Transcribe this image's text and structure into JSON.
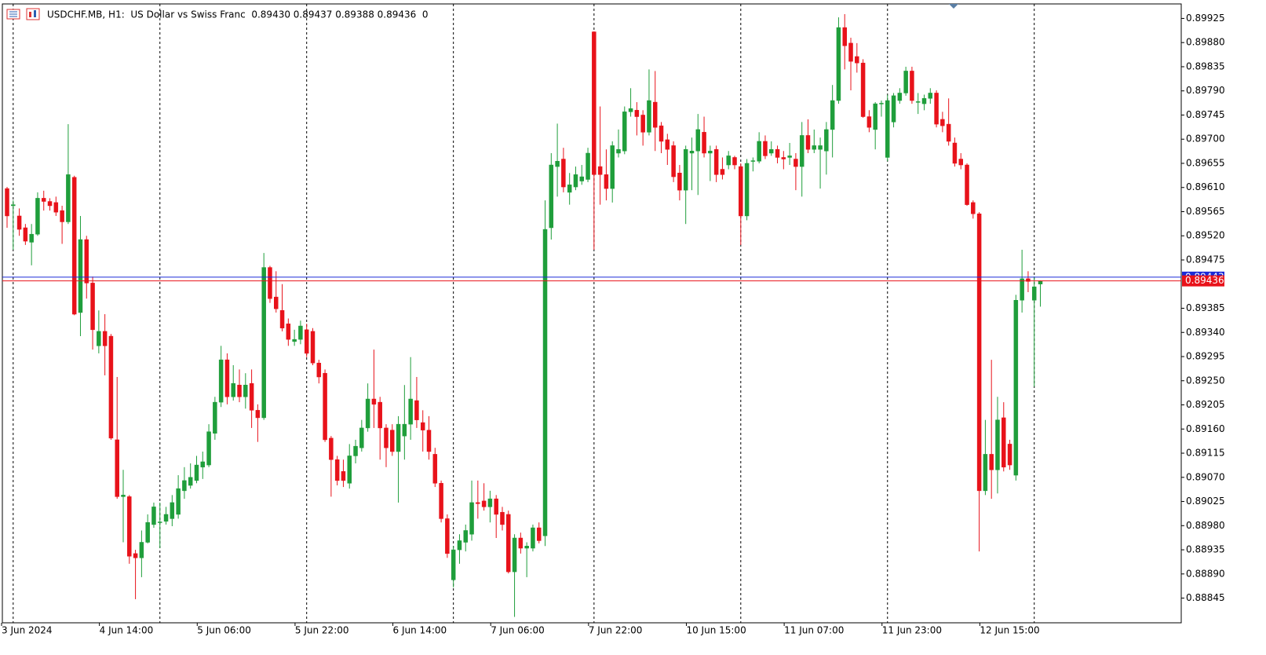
{
  "chart_data": {
    "type": "candlestick",
    "title": "USDCHF.MB, H1:  US Dollar vs Swiss Franc  0.89430 0.89437 0.89388 0.89436  0",
    "categories": [
      "3 Jun 2024",
      null,
      null,
      null,
      null,
      null,
      null,
      null,
      null,
      null,
      null,
      null,
      null,
      null,
      null,
      null,
      "4 Jun 14:00",
      null,
      null,
      null,
      null,
      null,
      null,
      null,
      null,
      null,
      null,
      null,
      null,
      null,
      null,
      null,
      "5 Jun 06:00",
      null,
      null,
      null,
      null,
      null,
      null,
      null,
      null,
      null,
      null,
      null,
      null,
      null,
      null,
      null,
      "5 Jun 22:00",
      null,
      null,
      null,
      null,
      null,
      null,
      null,
      null,
      null,
      null,
      null,
      null,
      null,
      null,
      null,
      "6 Jun 14:00",
      null,
      null,
      null,
      null,
      null,
      null,
      null,
      null,
      null,
      null,
      null,
      null,
      null,
      null,
      null,
      "7 Jun 06:00",
      null,
      null,
      null,
      null,
      null,
      null,
      null,
      null,
      null,
      null,
      null,
      null,
      null,
      null,
      null,
      "7 Jun 22:00",
      null,
      null,
      null,
      null,
      null,
      null,
      null,
      null,
      null,
      null,
      null,
      null,
      null,
      null,
      null,
      "10 Jun 15:00",
      null,
      null,
      null,
      null,
      null,
      null,
      null,
      null,
      null,
      null,
      null,
      null,
      null,
      null,
      null,
      "11 Jun 07:00",
      null,
      null,
      null,
      null,
      null,
      null,
      null,
      null,
      null,
      null,
      null,
      null,
      null,
      null,
      null,
      "11 Jun 23:00",
      null,
      null,
      null,
      null,
      null,
      null,
      null,
      null,
      null,
      null,
      null,
      null,
      null,
      null,
      null,
      "12 Jun 15:00",
      null,
      null,
      null,
      null,
      null,
      null,
      null,
      null,
      null
    ],
    "open": [
      0.89608,
      0.89576,
      0.89557,
      0.89535,
      0.89508,
      0.89523,
      0.8959,
      0.89584,
      0.89582,
      0.89567,
      0.89546,
      0.89629,
      0.89377,
      0.89513,
      0.89432,
      0.89315,
      0.89342,
      0.89333,
      0.8914,
      0.89034,
      0.89034,
      0.88928,
      0.8892,
      0.88949,
      0.88982,
      0.88986,
      0.88988,
      0.88993,
      0.89001,
      0.89045,
      0.89055,
      0.89064,
      0.89089,
      0.89093,
      0.89152,
      0.8921,
      0.89289,
      0.8922,
      0.89242,
      0.8922,
      0.89245,
      0.89195,
      0.89181,
      0.89461,
      0.89406,
      0.89381,
      0.89356,
      0.89323,
      0.89327,
      0.89345,
      0.89342,
      0.89283,
      0.89264,
      0.89143,
      0.89103,
      0.89081,
      0.89059,
      0.8911,
      0.89125,
      0.89162,
      0.89216,
      0.8921,
      0.89162,
      0.89158,
      0.89118,
      0.89147,
      0.89169,
      0.89213,
      0.89172,
      0.89158,
      0.89113,
      0.89059,
      0.88993,
      0.88879,
      0.88935,
      0.88949,
      0.88964,
      0.89023,
      0.89026,
      0.89015,
      0.8903,
      0.89005,
      0.89001,
      0.88894,
      0.88957,
      0.88938,
      0.88938,
      0.88976,
      0.88961,
      0.89535,
      0.89649,
      0.89663,
      0.89601,
      0.89611,
      0.89622,
      0.89625,
      0.899,
      0.89649,
      0.89634,
      0.89608,
      0.89674,
      0.89678,
      0.89751,
      0.89754,
      0.89745,
      0.89713,
      0.89769,
      0.89725,
      0.89699,
      0.89688,
      0.89637,
      0.89605,
      0.89674,
      0.89678,
      0.89713,
      0.89674,
      0.89681,
      0.89644,
      0.89652,
      0.89666,
      0.89649,
      0.89557,
      0.89659,
      0.89659,
      0.89696,
      0.89674,
      0.89681,
      0.89666,
      0.89666,
      0.89663,
      0.89649,
      0.89707,
      0.89681,
      0.89681,
      0.89678,
      0.89718,
      0.89772,
      0.89908,
      0.89879,
      0.89854,
      0.89842,
      0.89742,
      0.89718,
      0.89766,
      0.89666,
      0.89732,
      0.89772,
      0.89786,
      0.89827,
      0.89769,
      0.89766,
      0.89776,
      0.89786,
      0.89737,
      0.89728,
      0.89693,
      0.89663,
      0.89652,
      0.89582,
      0.89561,
      0.89045,
      0.89113,
      0.89084,
      0.89181,
      0.89132,
      0.89074,
      0.894,
      0.8944,
      0.894,
      0.8943
    ],
    "high": [
      0.89611,
      0.89586,
      0.89571,
      0.89542,
      0.89542,
      0.89601,
      0.89604,
      0.8959,
      0.89593,
      0.89576,
      0.89728,
      0.89632,
      0.89557,
      0.8952,
      0.89444,
      0.89381,
      0.89374,
      0.89337,
      0.89257,
      0.89084,
      0.89037,
      0.88935,
      0.88971,
      0.89001,
      0.89023,
      0.89023,
      0.89015,
      0.89037,
      0.89074,
      0.89089,
      0.89096,
      0.8911,
      0.89118,
      0.89169,
      0.8922,
      0.89315,
      0.89301,
      0.89279,
      0.89271,
      0.89264,
      0.89271,
      0.89206,
      0.89488,
      0.89464,
      0.89454,
      0.8943,
      0.89366,
      0.89345,
      0.89362,
      0.89356,
      0.89348,
      0.89289,
      0.89271,
      0.89147,
      0.8911,
      0.89103,
      0.89132,
      0.8914,
      0.89177,
      0.89245,
      0.89308,
      0.8922,
      0.89169,
      0.89169,
      0.89184,
      0.89242,
      0.89294,
      0.89257,
      0.89195,
      0.89184,
      0.89125,
      0.89064,
      0.89001,
      0.88942,
      0.88964,
      0.88982,
      0.89064,
      0.89064,
      0.89059,
      0.89045,
      0.89037,
      0.89015,
      0.89008,
      0.88964,
      0.88967,
      0.88949,
      0.88982,
      0.88986,
      0.89586,
      0.89674,
      0.89729,
      0.89684,
      0.89637,
      0.89649,
      0.89652,
      0.89684,
      0.89901,
      0.89761,
      0.89681,
      0.89696,
      0.89718,
      0.89761,
      0.89795,
      0.89769,
      0.89754,
      0.8983,
      0.89827,
      0.89732,
      0.8971,
      0.89696,
      0.89652,
      0.89688,
      0.89703,
      0.89747,
      0.89742,
      0.89688,
      0.89688,
      0.89666,
      0.89678,
      0.89669,
      0.89655,
      0.89663,
      0.89666,
      0.89713,
      0.89707,
      0.89696,
      0.89688,
      0.89678,
      0.89693,
      0.89674,
      0.89732,
      0.89737,
      0.89718,
      0.89703,
      0.89732,
      0.89801,
      0.89927,
      0.89933,
      0.89889,
      0.89879,
      0.89849,
      0.89754,
      0.89769,
      0.89772,
      0.89783,
      0.89786,
      0.89795,
      0.89835,
      0.89835,
      0.89786,
      0.89783,
      0.89795,
      0.89791,
      0.89751,
      0.89776,
      0.89703,
      0.89674,
      0.89655,
      0.89586,
      0.89564,
      0.89177,
      0.89289,
      0.8922,
      0.8921,
      0.8914,
      0.8941,
      0.89494,
      0.89454,
      0.89444,
      0.89437
    ],
    "low": [
      0.89535,
      0.89494,
      0.8952,
      0.89503,
      0.89465,
      0.8952,
      0.89567,
      0.89567,
      0.89557,
      0.89505,
      0.89542,
      0.89372,
      0.89333,
      0.89403,
      0.89308,
      0.89301,
      0.8926,
      0.8914,
      0.8903,
      0.88949,
      0.88909,
      0.88843,
      0.88884,
      0.88947,
      0.88976,
      0.88938,
      0.88982,
      0.88979,
      0.88993,
      0.8903,
      0.89049,
      0.89059,
      0.89067,
      0.89089,
      0.8914,
      0.89201,
      0.89206,
      0.89213,
      0.8921,
      0.89198,
      0.89162,
      0.89136,
      0.89177,
      0.89395,
      0.89377,
      0.89342,
      0.89315,
      0.89315,
      0.89318,
      0.89294,
      0.89279,
      0.89245,
      0.89136,
      0.89034,
      0.89055,
      0.89052,
      0.89049,
      0.89096,
      0.89118,
      0.89155,
      0.89162,
      0.89103,
      0.89089,
      0.8911,
      0.89023,
      0.89103,
      0.8914,
      0.89162,
      0.89118,
      0.89103,
      0.89052,
      0.88986,
      0.8892,
      0.88865,
      0.88909,
      0.88932,
      0.88952,
      0.88993,
      0.89008,
      0.88986,
      0.88957,
      0.88971,
      0.88891,
      0.8881,
      0.88928,
      0.88884,
      0.88932,
      0.88947,
      0.88942,
      0.89513,
      0.89593,
      0.89601,
      0.89578,
      0.89605,
      0.89615,
      0.8962,
      0.89494,
      0.89578,
      0.89586,
      0.89582,
      0.89666,
      0.89672,
      0.89742,
      0.89707,
      0.89688,
      0.89707,
      0.89678,
      0.89674,
      0.89652,
      0.8962,
      0.89586,
      0.89542,
      0.89605,
      0.89596,
      0.89666,
      0.89622,
      0.8962,
      0.89625,
      0.89644,
      0.89644,
      0.89503,
      0.89549,
      0.8964,
      0.89655,
      0.89663,
      0.89669,
      0.89655,
      0.89644,
      0.89652,
      0.89605,
      0.89593,
      0.89674,
      0.89674,
      0.89608,
      0.89634,
      0.89666,
      0.89766,
      0.8983,
      0.89791,
      0.89824,
      0.8974,
      0.89713,
      0.89681,
      0.89742,
      0.89659,
      0.89722,
      0.89766,
      0.89781,
      0.89766,
      0.89747,
      0.89754,
      0.89766,
      0.89722,
      0.89713,
      0.89688,
      0.89649,
      0.89644,
      0.89576,
      0.89552,
      0.88932,
      0.89037,
      0.8903,
      0.8904,
      0.89081,
      0.89084,
      0.89064,
      0.89377,
      0.89415,
      0.89239,
      0.89388
    ],
    "close": [
      0.89557,
      0.89578,
      0.89532,
      0.8951,
      0.89523,
      0.8959,
      0.89584,
      0.89576,
      0.89564,
      0.89546,
      0.89634,
      0.89374,
      0.89513,
      0.89432,
      0.89345,
      0.89342,
      0.89315,
      0.89143,
      0.89034,
      0.89037,
      0.88923,
      0.8892,
      0.88949,
      0.88986,
      0.89015,
      0.88987,
      0.89001,
      0.89023,
      0.89049,
      0.89064,
      0.8907,
      0.89093,
      0.89099,
      0.89155,
      0.8921,
      0.89289,
      0.8922,
      0.89245,
      0.8922,
      0.89242,
      0.89195,
      0.89181,
      0.89461,
      0.89403,
      0.89384,
      0.89348,
      0.89327,
      0.89327,
      0.89352,
      0.89301,
      0.89283,
      0.89257,
      0.8914,
      0.89103,
      0.89064,
      0.89064,
      0.8911,
      0.89128,
      0.89162,
      0.89216,
      0.89206,
      0.89162,
      0.89125,
      0.89118,
      0.89169,
      0.89169,
      0.89216,
      0.89177,
      0.89158,
      0.89118,
      0.89059,
      0.88993,
      0.88928,
      0.88935,
      0.88952,
      0.88971,
      0.89023,
      0.89021,
      0.89015,
      0.8903,
      0.89001,
      0.88982,
      0.88894,
      0.88957,
      0.88938,
      0.88942,
      0.88976,
      0.88952,
      0.89532,
      0.89652,
      0.89659,
      0.89611,
      0.89615,
      0.89634,
      0.8963,
      0.89674,
      0.89634,
      0.89634,
      0.89608,
      0.89688,
      0.89681,
      0.89751,
      0.89757,
      0.89742,
      0.89713,
      0.89772,
      0.89722,
      0.89696,
      0.89681,
      0.8963,
      0.89605,
      0.89681,
      0.89678,
      0.89718,
      0.89674,
      0.89678,
      0.89634,
      0.89634,
      0.89669,
      0.89652,
      0.89557,
      0.89655,
      0.8966,
      0.89696,
      0.89669,
      0.89681,
      0.89666,
      0.89663,
      0.89669,
      0.89649,
      0.89707,
      0.89681,
      0.89688,
      0.89688,
      0.89718,
      0.89772,
      0.89908,
      0.89874,
      0.89845,
      0.89842,
      0.89742,
      0.89722,
      0.89766,
      0.89767,
      0.89772,
      0.89781,
      0.89786,
      0.89827,
      0.89772,
      0.8977,
      0.89776,
      0.89786,
      0.89728,
      0.89725,
      0.89696,
      0.89655,
      0.89652,
      0.89578,
      0.89561,
      0.89045,
      0.89113,
      0.89084,
      0.89177,
      0.89089,
      0.89093,
      0.894,
      0.8944,
      0.89435,
      0.89425,
      0.89436
    ],
    "up_color": "#1f9e3b",
    "down_color": "#e8121a",
    "bid": 0.89436,
    "bid_color": "#e8121a",
    "ask": 0.89443,
    "ask_color": "#1b2bd8",
    "ylim": [
      0.88799,
      0.89952
    ],
    "yticks": [
      0.89925,
      {
        "value": 0.8988,
        "label": "0.89880"
      },
      0.89835,
      {
        "value": 0.8979,
        "label": "0.89790"
      },
      0.89745,
      {
        "value": 0.897,
        "label": "0.89700"
      },
      0.89655,
      {
        "value": 0.8961,
        "label": "0.89610"
      },
      0.89565,
      {
        "value": 0.8952,
        "label": "0.89520"
      },
      0.89475,
      0.89385,
      {
        "value": 0.8934,
        "label": "0.89340"
      },
      0.89295,
      {
        "value": 0.8925,
        "label": "0.89250"
      },
      0.89205,
      {
        "value": 0.8916,
        "label": "0.89160"
      },
      0.89115,
      {
        "value": 0.8907,
        "label": "0.89070"
      },
      0.89025,
      {
        "value": 0.8898,
        "label": "0.88980"
      },
      0.88935,
      {
        "value": 0.8889,
        "label": "0.88890"
      },
      0.88845
    ]
  }
}
